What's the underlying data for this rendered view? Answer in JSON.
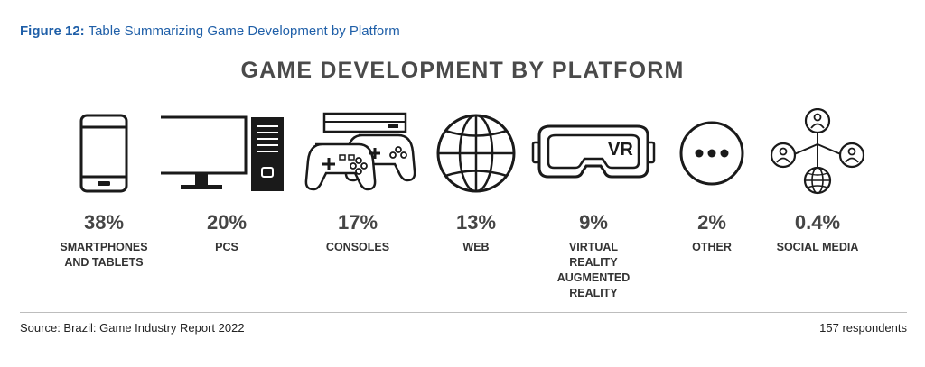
{
  "figure": {
    "number": "Figure 12:",
    "caption": "Table Summarizing Game Development by Platform"
  },
  "title": "GAME DEVELOPMENT BY PLATFORM",
  "chart_data": {
    "type": "table",
    "title": "GAME DEVELOPMENT BY PLATFORM",
    "categories": [
      "SMARTPHONES AND TABLETS",
      "PCS",
      "CONSOLES",
      "WEB",
      "VIRTUAL REALITY AUGMENTED REALITY",
      "OTHER",
      "SOCIAL MEDIA"
    ],
    "values": [
      38,
      20,
      17,
      13,
      9,
      2,
      0.4
    ],
    "items": [
      {
        "value": "38%",
        "label_lines": [
          "SMARTPHONES",
          "AND TABLETS"
        ],
        "icon": "smartphone-icon"
      },
      {
        "value": "20%",
        "label_lines": [
          "PCS"
        ],
        "icon": "desktop-pc-icon"
      },
      {
        "value": "17%",
        "label_lines": [
          "CONSOLES"
        ],
        "icon": "console-controllers-icon"
      },
      {
        "value": "13%",
        "label_lines": [
          "WEB"
        ],
        "icon": "globe-icon"
      },
      {
        "value": "9%",
        "label_lines": [
          "VIRTUAL",
          "REALITY",
          "AUGMENTED",
          "REALITY"
        ],
        "icon": "vr-headset-icon",
        "icon_text": "VR"
      },
      {
        "value": "2%",
        "label_lines": [
          "OTHER"
        ],
        "icon": "ellipsis-circle-icon"
      },
      {
        "value": "0.4%",
        "label_lines": [
          "SOCIAL MEDIA"
        ],
        "icon": "social-network-icon"
      }
    ]
  },
  "footer": {
    "source": "Source: Brazil: Game Industry Report 2022",
    "respondents": "157 respondents"
  },
  "colors": {
    "caption": "#1f5fa8",
    "text": "#3a3a3a",
    "icon_stroke": "#1a1a1a"
  }
}
